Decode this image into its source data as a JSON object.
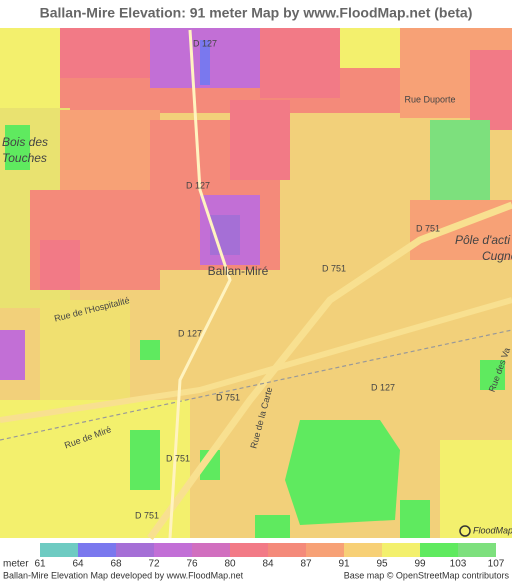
{
  "title": "Ballan-Mire Elevation: 91 meter Map by www.FloodMap.net (beta)",
  "map_labels": [
    "D 127",
    "Rue Duporte",
    "Bois des",
    "Touches",
    "D 127",
    "D 751",
    "Pôle d'acti",
    "Cugno",
    "Ballan-Miré",
    "D 751",
    "Rue de l'Hospitalité",
    "D 127",
    "D 751",
    "D 127",
    "Rue de la Carte",
    "Rue de Miré",
    "D 751",
    "D 751",
    "Rue des Va"
  ],
  "legend": {
    "unit": "meter",
    "ticks": [
      61,
      64,
      68,
      72,
      76,
      80,
      84,
      87,
      91,
      95,
      99,
      103,
      107
    ],
    "colors": [
      "#6ecbc2",
      "#7a78ee",
      "#a56fd6",
      "#c26fd6",
      "#d16fbf",
      "#f27a86",
      "#f48a7a",
      "#f7a176",
      "#f7d076",
      "#f3f06d",
      "#5fea5f",
      "#7de07d"
    ]
  },
  "footer": {
    "left": "Ballan-Mire Elevation Map developed by www.FloodMap.net",
    "right": "Base map © OpenStreetMap contributors"
  },
  "watermark": "FloodMap.net"
}
